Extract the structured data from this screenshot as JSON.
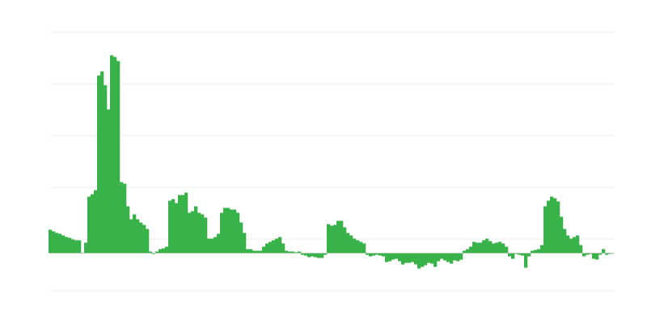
{
  "chart_data": {
    "type": "bar",
    "title": "",
    "xlabel": "",
    "ylabel": "",
    "ylim": [
      -46.5,
      273.5
    ],
    "gridlines": [
      -46.5,
      17.5,
      81.5,
      145.5,
      209.5,
      273.5
    ],
    "grid": true,
    "legend": "none",
    "colors": {
      "bar": "#39b24a",
      "grid": "#eeeeee",
      "baseline": "#bbbbbb"
    },
    "values": [
      29,
      27,
      25,
      24,
      22,
      20,
      19,
      17,
      16,
      16,
      0,
      13,
      70,
      73,
      78,
      220,
      225,
      208,
      178,
      245,
      243,
      238,
      88,
      86,
      58,
      42,
      48,
      42,
      38,
      35,
      30,
      2,
      -1,
      2,
      5,
      6,
      8,
      65,
      67,
      62,
      72,
      72,
      75,
      50,
      52,
      58,
      50,
      48,
      44,
      18,
      18,
      20,
      24,
      50,
      56,
      56,
      54,
      54,
      50,
      38,
      25,
      5,
      5,
      3,
      3,
      3,
      8,
      12,
      14,
      16,
      18,
      20,
      12,
      3,
      2,
      2,
      1,
      2,
      -2,
      -3,
      -5,
      -4,
      -5,
      -6,
      -6,
      -2,
      36,
      34,
      35,
      40,
      40,
      32,
      25,
      22,
      18,
      16,
      14,
      12,
      -2,
      -4,
      -3,
      -2,
      -3,
      -4,
      -11,
      -10,
      -8,
      -7,
      -10,
      -14,
      -12,
      -12,
      -11,
      -14,
      -19,
      -17,
      -15,
      -12,
      -13,
      -17,
      -10,
      -7,
      -9,
      -11,
      -13,
      -9,
      -10,
      -8,
      3,
      5,
      8,
      14,
      13,
      13,
      16,
      18,
      15,
      12,
      13,
      14,
      12,
      8,
      -4,
      -7,
      -1,
      -2,
      -3,
      -18,
      -4,
      3,
      4,
      5,
      10,
      58,
      65,
      70,
      68,
      64,
      45,
      30,
      22,
      18,
      20,
      22,
      10,
      -4,
      -2,
      -1,
      -7,
      -8,
      -2,
      5,
      -2,
      -1,
      0
    ]
  }
}
